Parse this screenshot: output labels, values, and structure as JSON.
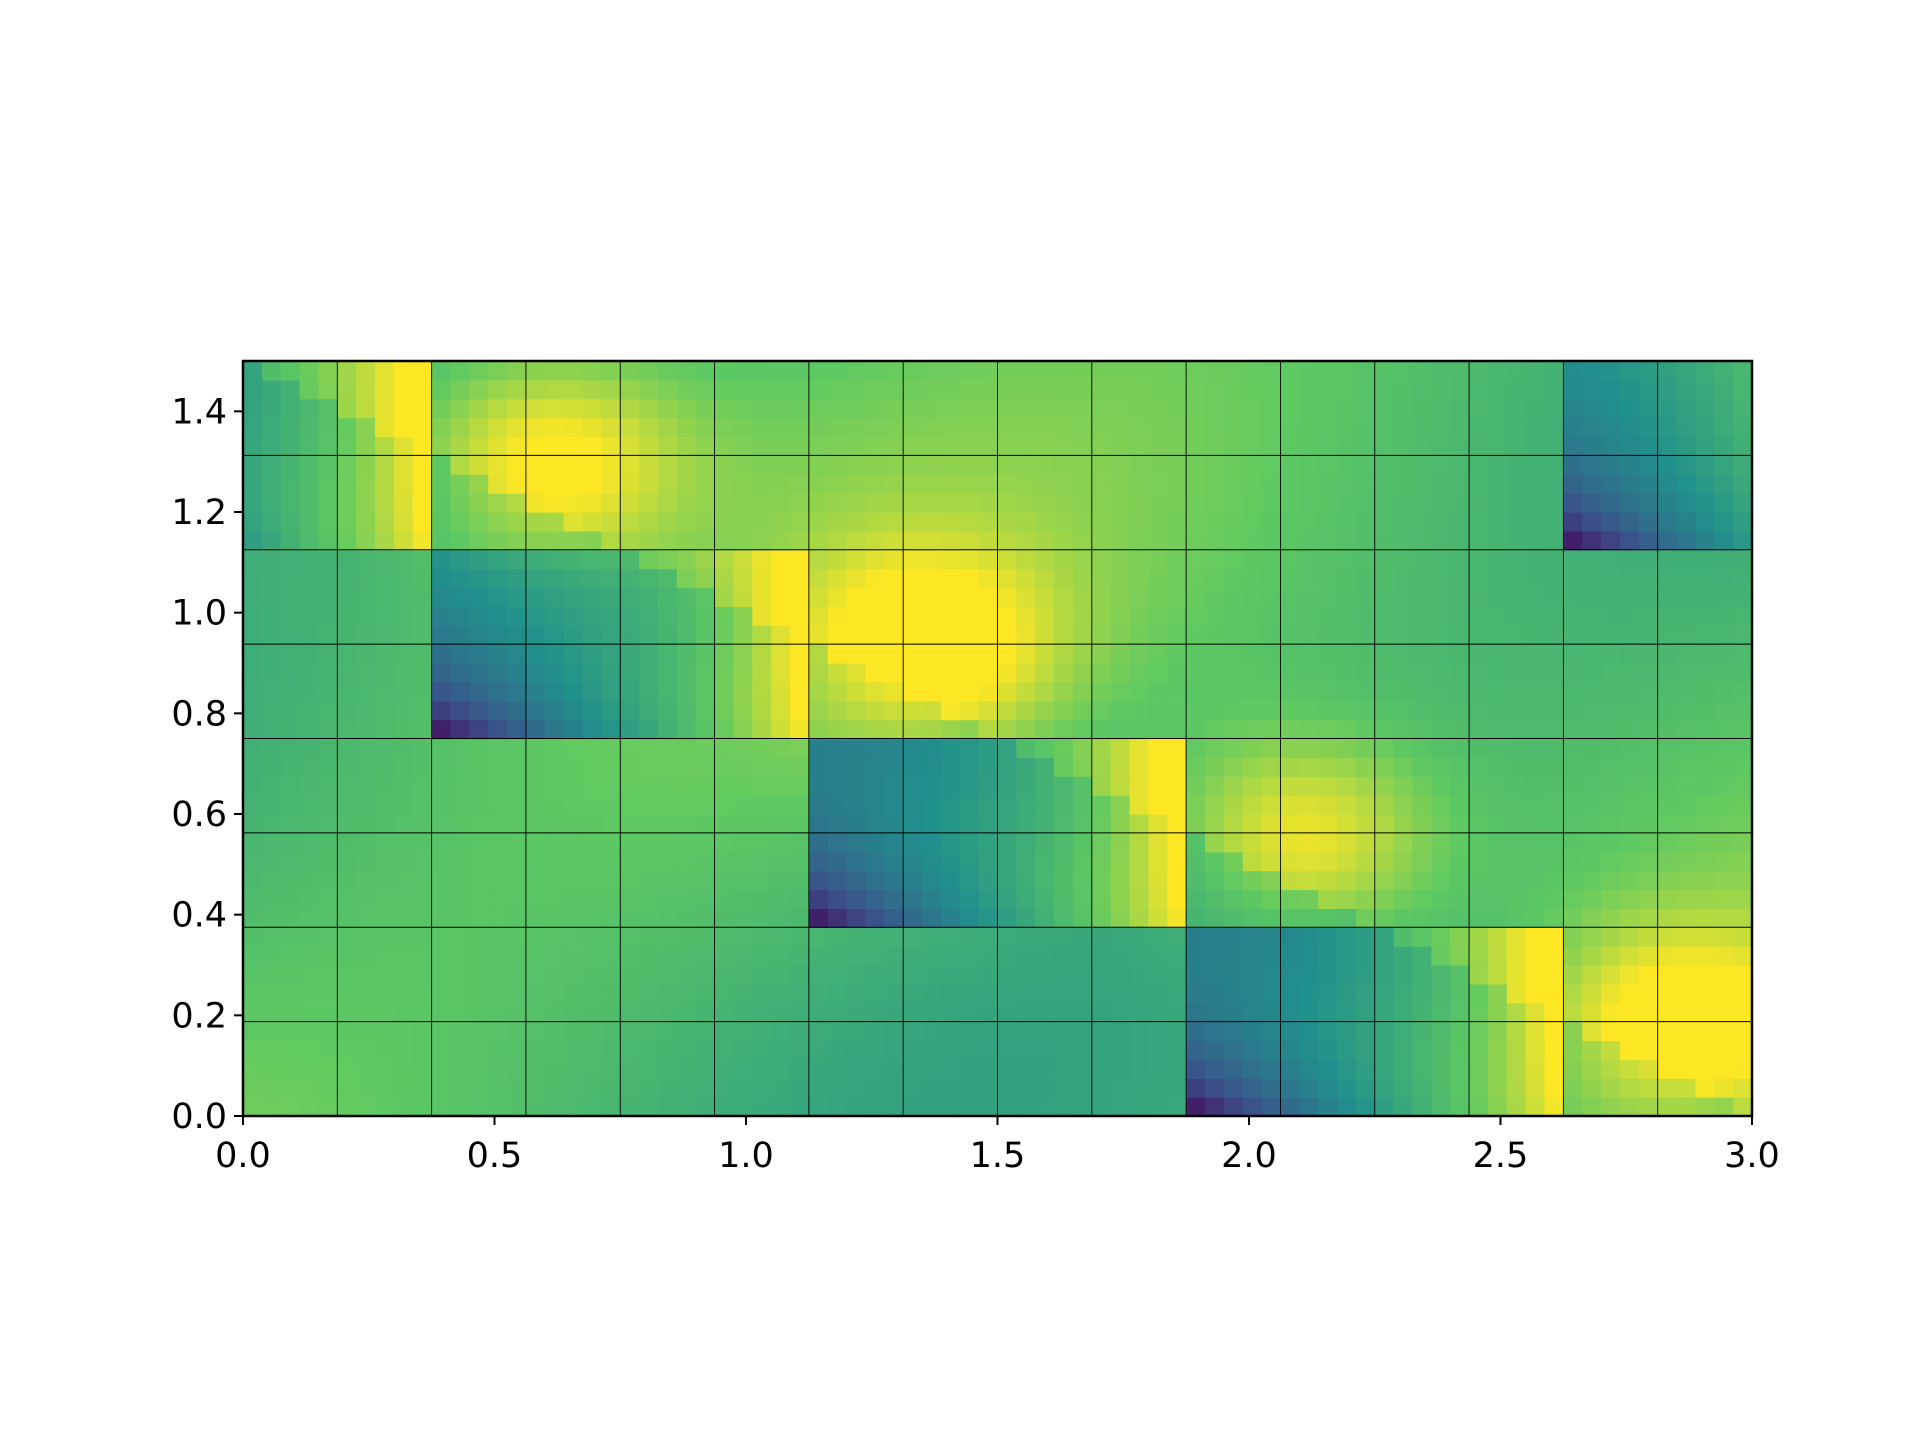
{
  "chart_data": {
    "type": "heatmap",
    "title": "",
    "xlabel": "",
    "ylabel": "",
    "xlim": [
      0.0,
      3.0
    ],
    "ylim": [
      0.0,
      1.5
    ],
    "grid": "on",
    "legend": "none",
    "colormap": "viridis",
    "colormap_stops": [
      "#440154",
      "#3b528b",
      "#21918c",
      "#5ec962",
      "#fde725"
    ],
    "x_ticks": [
      {
        "value": 0.0,
        "label": "0.0"
      },
      {
        "value": 0.5,
        "label": "0.5"
      },
      {
        "value": 1.0,
        "label": "1.0"
      },
      {
        "value": 1.5,
        "label": "1.5"
      },
      {
        "value": 2.0,
        "label": "2.0"
      },
      {
        "value": 2.5,
        "label": "2.5"
      },
      {
        "value": 3.0,
        "label": "3.0"
      }
    ],
    "y_ticks": [
      {
        "value": 0.0,
        "label": "0.0"
      },
      {
        "value": 0.2,
        "label": "0.2"
      },
      {
        "value": 0.4,
        "label": "0.4"
      },
      {
        "value": 0.6,
        "label": "0.6"
      },
      {
        "value": 0.8,
        "label": "0.8"
      },
      {
        "value": 1.0,
        "label": "1.0"
      },
      {
        "value": 1.2,
        "label": "1.2"
      },
      {
        "value": 1.4,
        "label": "1.4"
      }
    ],
    "grid_x": [
      0.1875,
      0.375,
      0.5625,
      0.75,
      0.9375,
      1.125,
      1.3125,
      1.5,
      1.6875,
      1.875,
      2.0625,
      2.25,
      2.4375,
      2.625,
      2.8125
    ],
    "grid_y": [
      0.1875,
      0.375,
      0.5625,
      0.75,
      0.9375,
      1.125,
      1.3125
    ],
    "blocks": [
      {
        "x0": 0.375,
        "x1": 1.125,
        "y0": 0.75,
        "y1": 1.125
      },
      {
        "x0": 1.125,
        "x1": 1.875,
        "y0": 0.375,
        "y1": 0.75
      },
      {
        "x0": 1.875,
        "x1": 2.625,
        "y0": 0.0,
        "y1": 0.375
      },
      {
        "x0": 2.625,
        "x1": 3.375,
        "y0": 1.125,
        "y1": 1.5
      },
      {
        "x0": -0.375,
        "x1": 0.375,
        "y0": 1.125,
        "y1": 1.5
      }
    ],
    "cell_resolution": [
      80,
      40
    ]
  }
}
